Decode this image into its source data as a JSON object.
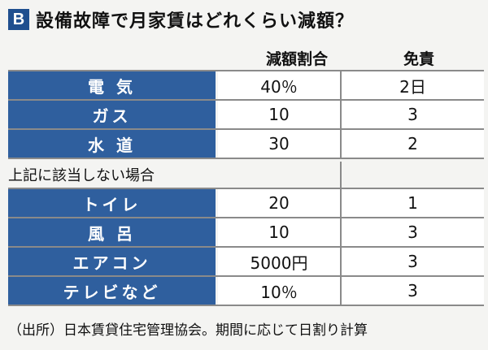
{
  "title": {
    "badge": "B",
    "text": "設備故障で月家賃はどれくらい減額？"
  },
  "columns": {
    "rate": "減額割合",
    "exempt": "免責"
  },
  "rows_a": [
    {
      "label": "電 気",
      "value": "40％",
      "exempt": "2日"
    },
    {
      "label": "ガス",
      "value": "10",
      "exempt": "3"
    },
    {
      "label": "水 道",
      "value": "30",
      "exempt": "2"
    }
  ],
  "subheading": "上記に該当しない場合",
  "rows_b": [
    {
      "label": "トイレ",
      "value": "20",
      "exempt": "1"
    },
    {
      "label": "風 呂",
      "value": "10",
      "exempt": "3"
    },
    {
      "label": "エアコン",
      "value": "5000円",
      "exempt": "3"
    },
    {
      "label": "テレビなど",
      "value": "10％",
      "exempt": "3"
    }
  ],
  "source": "（出所）日本賃貸住宅管理協会。期間に応じて日割り計算",
  "colors": {
    "label_bg": "#2f5f9e",
    "badge_bg": "#1f4f8f",
    "background": "#f4f4f2",
    "rule": "#8a8a8a"
  }
}
